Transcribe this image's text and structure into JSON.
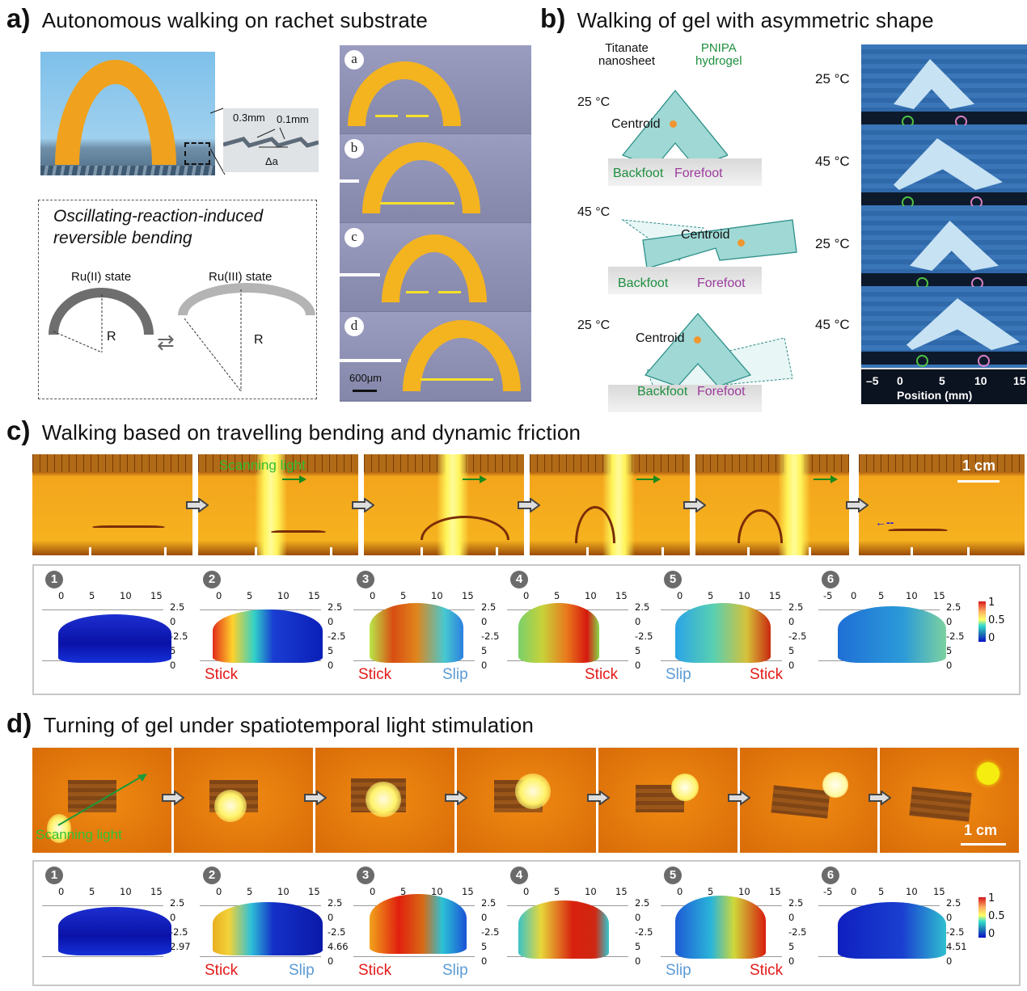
{
  "panels": {
    "a": {
      "letter": "a)",
      "title": "Autonomous walking on rachet substrate",
      "inset": {
        "dim1": "0.3mm",
        "dim2": "0.1mm",
        "delta": "Δa"
      },
      "box_title_line1": "Oscillating-reaction-induced",
      "box_title_line2": "reversible bending",
      "state_left": "Ru(II) state",
      "state_right": "Ru(III) state",
      "radius_label": "R",
      "exchange_icon": "⇄",
      "frames": [
        "a",
        "b",
        "c",
        "d"
      ],
      "scale_bar": "600μm"
    },
    "b": {
      "letter": "b)",
      "title": "Walking of gel with asymmetric shape",
      "labels": {
        "titanate": "Titanate",
        "nanosheet": "nanosheet",
        "pnipa": "PNIPA",
        "hydrogel": "hydrogel",
        "centroid": "Centroid",
        "backfoot": "Backfoot",
        "forefoot": "Forefoot"
      },
      "diagram_temps": [
        "25 °C",
        "45 °C",
        "25 °C"
      ],
      "photo_temps": [
        "25 °C",
        "45 °C",
        "25 °C",
        "45 °C"
      ],
      "axis_ticks": [
        "–5",
        "0",
        "5",
        "10",
        "15"
      ],
      "axis_label": "Position (mm)",
      "colors": {
        "backfoot": "#1e8f3f",
        "forefoot": "#9b3b9c",
        "gel": "#9fd8d4"
      }
    },
    "c": {
      "letter": "c)",
      "title": "Walking based on travelling bending and dynamic friction",
      "scanning_light": "Scanning light",
      "scale_bar": "1 cm",
      "sim_steps": [
        {
          "n": "1",
          "xticks": [
            "0",
            "5",
            "10",
            "15"
          ],
          "zticks": [
            "2.5",
            "0",
            "-2.5",
            "5",
            "0"
          ],
          "labels": []
        },
        {
          "n": "2",
          "xticks": [
            "0",
            "5",
            "10",
            "15"
          ],
          "zticks": [
            "2.5",
            "0",
            "-2.5",
            "5",
            "0"
          ],
          "labels": [
            "Stick"
          ]
        },
        {
          "n": "3",
          "xticks": [
            "0",
            "5",
            "10",
            "15"
          ],
          "zticks": [
            "2.5",
            "0",
            "-2.5",
            "5",
            "0"
          ],
          "labels": [
            "Stick",
            "Slip"
          ]
        },
        {
          "n": "4",
          "xticks": [
            "0",
            "5",
            "10",
            "15"
          ],
          "zticks": [
            "2.5",
            "0",
            "-2.5",
            "5",
            "0"
          ],
          "labels": [
            "Stick"
          ]
        },
        {
          "n": "5",
          "xticks": [
            "0",
            "5",
            "10",
            "15"
          ],
          "zticks": [
            "2.5",
            "0",
            "-2.5",
            "5",
            "0"
          ],
          "labels": [
            "Slip",
            "Stick"
          ]
        },
        {
          "n": "6",
          "xticks": [
            "-5",
            "0",
            "5",
            "10",
            "15"
          ],
          "zticks": [
            "2.5",
            "0",
            "-2.5",
            "5",
            "0"
          ],
          "labels": []
        }
      ],
      "colorbar": [
        "1",
        "0.5",
        "0"
      ]
    },
    "d": {
      "letter": "d)",
      "title": "Turning of gel under spatiotemporal light stimulation",
      "scanning_light": "Scanning light",
      "scale_bar": "1 cm",
      "sim_steps": [
        {
          "n": "1",
          "xticks": [
            "0",
            "5",
            "10",
            "15"
          ],
          "zticks": [
            "2.5",
            "0",
            "-2.5",
            "2.97"
          ],
          "labels": []
        },
        {
          "n": "2",
          "xticks": [
            "0",
            "5",
            "10",
            "15"
          ],
          "zticks": [
            "2.5",
            "0",
            "-2.5",
            "4.66",
            "0"
          ],
          "labels": [
            "Stick",
            "Slip"
          ]
        },
        {
          "n": "3",
          "xticks": [
            "0",
            "5",
            "10",
            "15"
          ],
          "zticks": [
            "2.5",
            "0",
            "-2.5",
            "5",
            "0"
          ],
          "labels": [
            "Stick",
            "Slip"
          ]
        },
        {
          "n": "4",
          "xticks": [
            "0",
            "5",
            "10",
            "15"
          ],
          "zticks": [
            "2.5",
            "0",
            "-2.5",
            "5",
            "0"
          ],
          "labels": []
        },
        {
          "n": "5",
          "xticks": [
            "0",
            "5",
            "10",
            "15"
          ],
          "zticks": [
            "2.5",
            "0",
            "-2.5",
            "5",
            "0"
          ],
          "labels": [
            "Slip",
            "Stick"
          ]
        },
        {
          "n": "6",
          "xticks": [
            "-5",
            "0",
            "5",
            "10",
            "15"
          ],
          "zticks": [
            "2.5",
            "0",
            "-2.5",
            "4.51",
            "0"
          ],
          "labels": []
        }
      ],
      "colorbar": [
        "1",
        "0.5",
        "0"
      ]
    }
  }
}
